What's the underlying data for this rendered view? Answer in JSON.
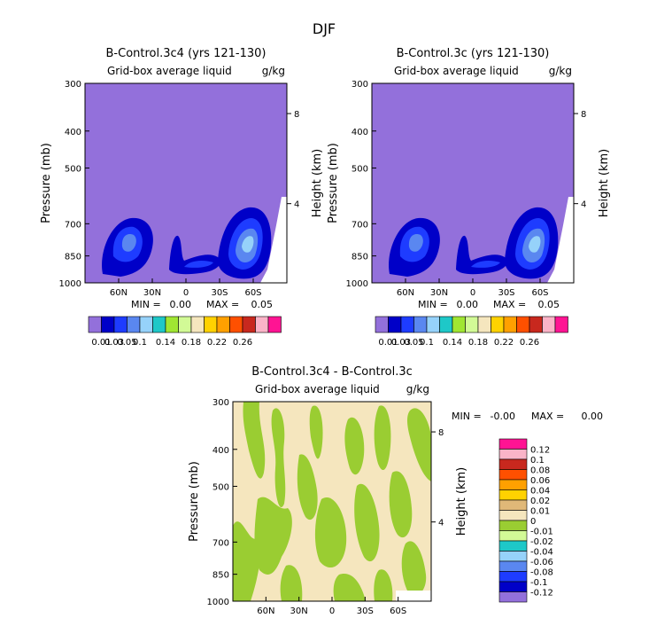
{
  "page_title": "DJF",
  "colors": {
    "levels": [
      "#9370db",
      "#0000c8",
      "#1e3cff",
      "#5a87f0",
      "#96d2fa",
      "#1ec8c8",
      "#a0e632",
      "#d2fa96",
      "#f5e6be",
      "#ffd200",
      "#ffa000",
      "#ff5000",
      "#c8281e",
      "#fab4c8",
      "#ff1493"
    ],
    "diff_levels": [
      "#9370db",
      "#0000c8",
      "#1e3cff",
      "#5a87f0",
      "#96d2fa",
      "#1ec8c8",
      "#d2fa96",
      "#9acd32",
      "#f5e6be",
      "#e0b878",
      "#ffd200",
      "#ffa000",
      "#ff5000",
      "#c8281e",
      "#fab4c8",
      "#ff1493"
    ]
  },
  "chart_data": [
    {
      "type": "heatmap",
      "id": "top-left",
      "title": "B-Control.3c4 (yrs 121-130)",
      "subtitle": "Grid-box average liquid",
      "units": "g/kg",
      "ylabel": "Pressure (mb)",
      "ylabel_right": "Height (km)",
      "y_ticks": [
        "300",
        "400",
        "500",
        "700",
        "850",
        "1000"
      ],
      "y_ticks_right": [
        "8",
        "4"
      ],
      "x_ticks": [
        "60N",
        "30N",
        "0",
        "30S",
        "60S"
      ],
      "ylim": [
        1000,
        300
      ],
      "stats": {
        "min_label": "MIN =",
        "min": "0.00",
        "max_label": "MAX =",
        "max": "0.05"
      },
      "colorbar_labels": [
        "0.01",
        "0.03",
        "0.05",
        "0.1",
        "0.14",
        "0.18",
        "0.22",
        "0.26"
      ]
    },
    {
      "type": "heatmap",
      "id": "top-right",
      "title": "B-Control.3c (yrs 121-130)",
      "subtitle": "Grid-box average liquid",
      "units": "g/kg",
      "ylabel": "Pressure (mb)",
      "ylabel_right": "Height (km)",
      "y_ticks": [
        "300",
        "400",
        "500",
        "700",
        "850",
        "1000"
      ],
      "y_ticks_right": [
        "8",
        "4"
      ],
      "x_ticks": [
        "60N",
        "30N",
        "0",
        "30S",
        "60S"
      ],
      "ylim": [
        1000,
        300
      ],
      "stats": {
        "min_label": "MIN =",
        "min": "0.00",
        "max_label": "MAX =",
        "max": "0.05"
      },
      "colorbar_labels": [
        "0.01",
        "0.03",
        "0.05",
        "0.1",
        "0.14",
        "0.18",
        "0.22",
        "0.26"
      ]
    },
    {
      "type": "heatmap",
      "id": "difference",
      "title": "B-Control.3c4 - B-Control.3c",
      "subtitle": "Grid-box average liquid",
      "units": "g/kg",
      "ylabel": "Pressure (mb)",
      "ylabel_right": "Height (km)",
      "y_ticks": [
        "300",
        "400",
        "500",
        "700",
        "850",
        "1000"
      ],
      "y_ticks_right": [
        "8",
        "4"
      ],
      "x_ticks": [
        "60N",
        "30N",
        "0",
        "30S",
        "60S"
      ],
      "ylim": [
        1000,
        300
      ],
      "stats": {
        "min_label": "MIN =",
        "min": "-0.00",
        "max_label": "MAX =",
        "max": "0.00"
      },
      "colorbar_labels": [
        "0.12",
        "0.1",
        "0.08",
        "0.06",
        "0.04",
        "0.02",
        "0.01",
        "0",
        "-0.01",
        "-0.02",
        "-0.04",
        "-0.06",
        "-0.08",
        "-0.1",
        "-0.12"
      ]
    }
  ]
}
